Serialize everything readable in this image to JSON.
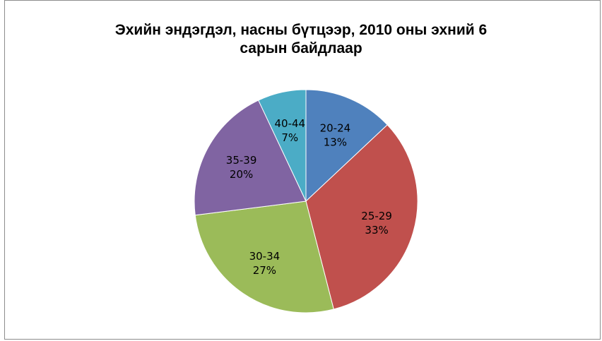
{
  "chart_data": {
    "type": "pie",
    "title_lines": [
      "Эхийн эндэгдэл, насны бүтцээр, 2010 оны эхний 6",
      "сарын байдлаар"
    ],
    "categories": [
      "20-24",
      "25-29",
      "30-34",
      "35-39",
      "40-44"
    ],
    "values": [
      13,
      33,
      27,
      20,
      7
    ],
    "labels": [
      "13%",
      "33%",
      "27%",
      "20%",
      "7%"
    ],
    "colors": [
      "#4f81bd",
      "#c0504d",
      "#9bbb59",
      "#8064a2",
      "#4bacc6"
    ],
    "start_angle": "12 o'clock",
    "direction": "clockwise",
    "legend": "none"
  }
}
